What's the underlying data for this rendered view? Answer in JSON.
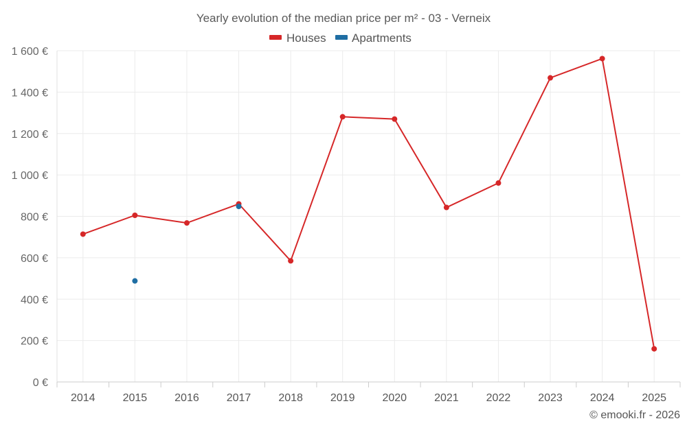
{
  "chart_data": {
    "type": "line",
    "title": "Yearly evolution of the median price per m² - 03 - Verneix",
    "categories": [
      "2014",
      "2015",
      "2016",
      "2017",
      "2018",
      "2019",
      "2020",
      "2021",
      "2022",
      "2023",
      "2024",
      "2025"
    ],
    "series": [
      {
        "name": "Houses",
        "color": "#d62728",
        "values": [
          714,
          805,
          768,
          860,
          585,
          1281,
          1270,
          843,
          961,
          1469,
          1562,
          160
        ]
      },
      {
        "name": "Apartments",
        "color": "#1f6ea3",
        "values": [
          null,
          488,
          null,
          848,
          null,
          null,
          null,
          null,
          null,
          null,
          null,
          null
        ]
      }
    ],
    "ylim": [
      0,
      1600
    ],
    "yticks": [
      0,
      200,
      400,
      600,
      800,
      1000,
      1200,
      1400,
      1600
    ],
    "ytick_labels": [
      "0 €",
      "200 €",
      "400 €",
      "600 €",
      "800 €",
      "1 000 €",
      "1 200 €",
      "1 400 €",
      "1 600 €"
    ],
    "grid": true,
    "legend_position": "top-center"
  },
  "footer": {
    "credit": "© emooki.fr - 2026"
  }
}
